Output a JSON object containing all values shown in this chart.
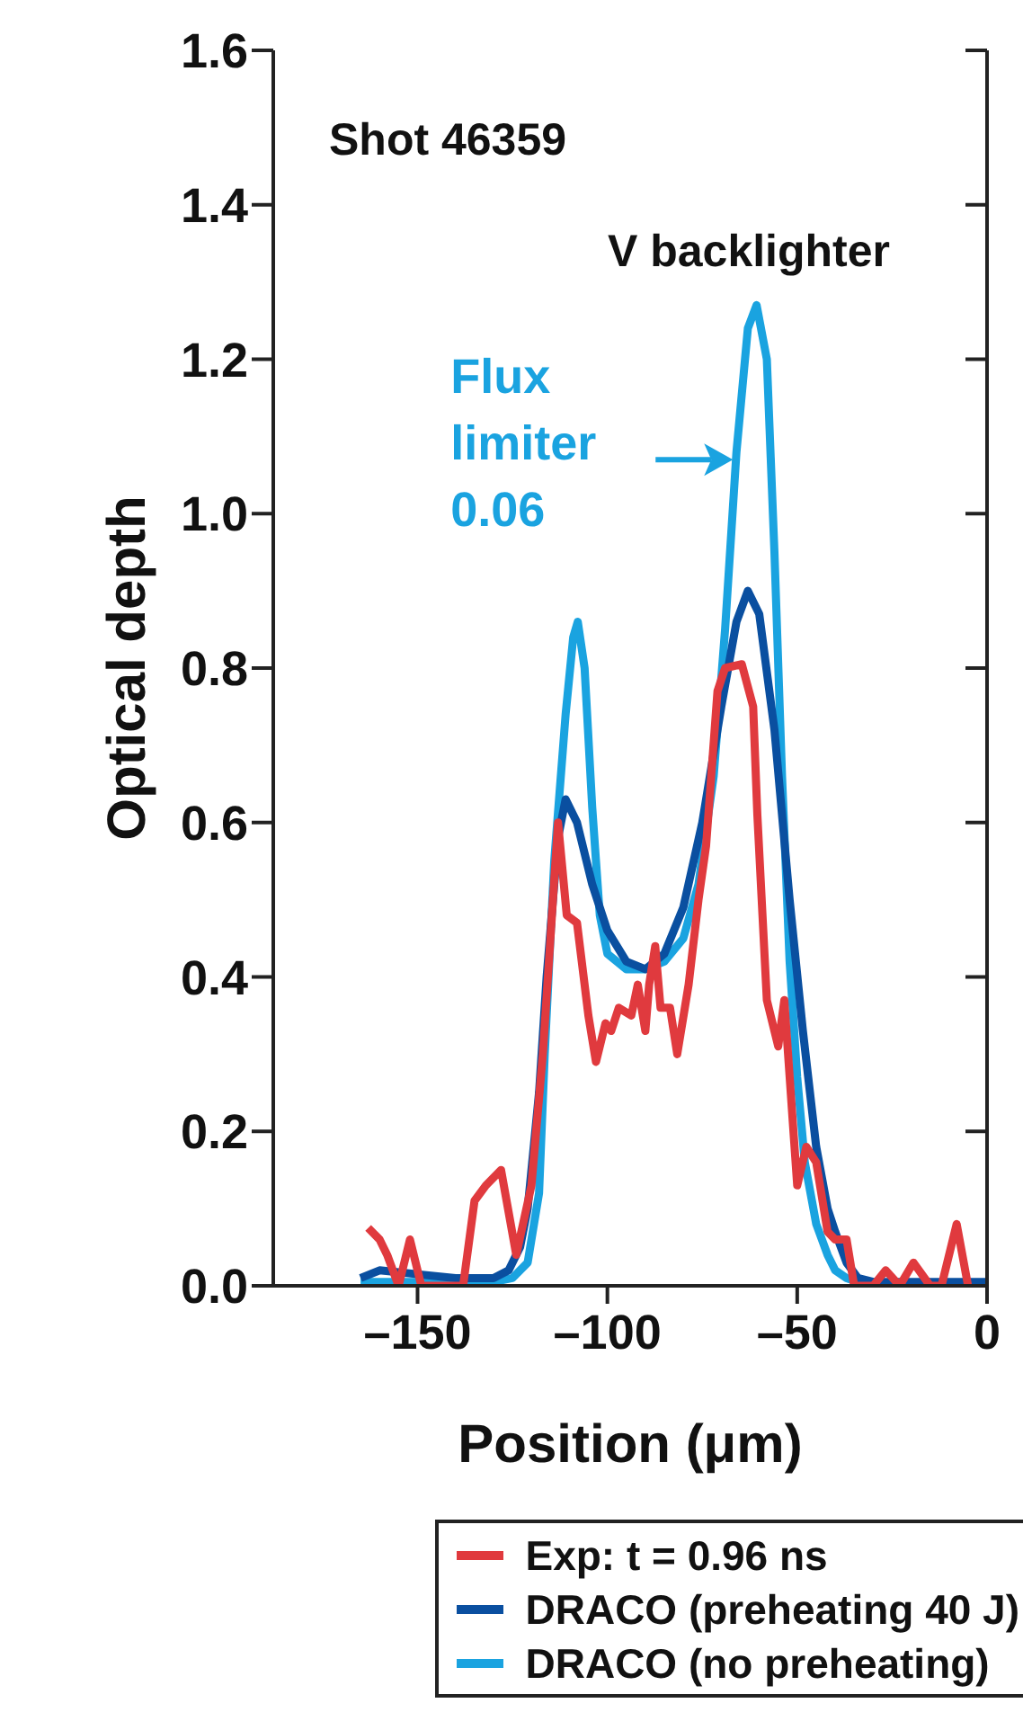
{
  "chart_data": {
    "type": "line",
    "xlabel": "Position (μm)",
    "ylabel": "Optical depth",
    "annotations": [
      "Shot 46359",
      "V backlighter",
      {
        "text": "Flux limiter 0.06",
        "x": -66,
        "y": 1.07
      }
    ],
    "series": [
      {
        "name": "Exp: t = 0.96 ns",
        "color": "#e03a3e",
        "x": [
          -163,
          -160,
          -158,
          -155,
          -152,
          -149,
          -146,
          -142,
          -138,
          -135,
          -132,
          -128,
          -124,
          -120,
          -117,
          -113,
          -110.7,
          -108,
          -105,
          -103,
          -100.5,
          -99,
          -97,
          -93.7,
          -92,
          -90,
          -89,
          -87.4,
          -86,
          -83.5,
          -81.6,
          -78.6,
          -76,
          -74,
          -71,
          -69,
          -64.6,
          -61.6,
          -60.5,
          -58,
          -55,
          -53.4,
          -50,
          -47.6,
          -45,
          -42,
          -40,
          -37,
          -35,
          -30,
          -26.7,
          -23,
          -19.4,
          -15,
          -12,
          -8,
          -5
        ],
        "values": [
          0.075,
          0.06,
          0.04,
          0.0,
          0.06,
          0.0,
          0.0,
          0.0,
          0.0,
          0.11,
          0.13,
          0.15,
          0.04,
          0.13,
          0.3,
          0.6,
          0.48,
          0.47,
          0.35,
          0.29,
          0.34,
          0.33,
          0.36,
          0.35,
          0.39,
          0.33,
          0.39,
          0.44,
          0.36,
          0.36,
          0.3,
          0.39,
          0.5,
          0.57,
          0.77,
          0.8,
          0.805,
          0.75,
          0.61,
          0.37,
          0.31,
          0.37,
          0.13,
          0.18,
          0.16,
          0.07,
          0.06,
          0.06,
          0.0,
          0.0,
          0.02,
          0.0,
          0.03,
          0.0,
          0.0,
          0.08,
          0.0
        ]
      },
      {
        "name": "DRACO (preheating 40 J)",
        "color": "#0a4fa0",
        "x": [
          -165,
          -160,
          -150,
          -140,
          -130,
          -126,
          -123,
          -121,
          -118,
          -116,
          -113,
          -111,
          -108,
          -104,
          -100,
          -95,
          -90,
          -85,
          -80,
          -75,
          -70,
          -66,
          -63,
          -60,
          -56,
          -52,
          -48.5,
          -45,
          -42,
          -40,
          -37,
          -34,
          -30,
          -20,
          -10,
          0
        ],
        "values": [
          0.01,
          0.02,
          0.015,
          0.01,
          0.01,
          0.02,
          0.05,
          0.1,
          0.25,
          0.4,
          0.58,
          0.63,
          0.6,
          0.52,
          0.46,
          0.42,
          0.41,
          0.43,
          0.49,
          0.6,
          0.75,
          0.86,
          0.9,
          0.87,
          0.72,
          0.5,
          0.33,
          0.18,
          0.1,
          0.07,
          0.03,
          0.01,
          0.005,
          0.005,
          0.005,
          0.005
        ]
      },
      {
        "name": "DRACO (no preheating)",
        "color": "#1aa3e0",
        "x": [
          -165,
          -160,
          -150,
          -140,
          -130,
          -125,
          -121,
          -118,
          -116.5,
          -114,
          -111,
          -109,
          -107.8,
          -106,
          -104,
          -102,
          -100,
          -95,
          -90,
          -85,
          -80,
          -76,
          -72,
          -69,
          -66,
          -63,
          -60.7,
          -58,
          -56,
          -54,
          -52,
          -50,
          -48,
          -45,
          -42,
          -40,
          -37,
          -34,
          -30
        ],
        "values": [
          0.005,
          0.005,
          0.005,
          0.005,
          0.005,
          0.01,
          0.03,
          0.12,
          0.3,
          0.55,
          0.74,
          0.84,
          0.86,
          0.8,
          0.62,
          0.48,
          0.43,
          0.41,
          0.41,
          0.42,
          0.45,
          0.52,
          0.66,
          0.85,
          1.08,
          1.24,
          1.27,
          1.2,
          0.95,
          0.66,
          0.42,
          0.27,
          0.16,
          0.08,
          0.04,
          0.02,
          0.01,
          0.005,
          0.0
        ]
      }
    ],
    "xlim": [
      -188,
      0
    ],
    "xticks": [
      {
        "value": -150,
        "label": "–150"
      },
      {
        "value": -100,
        "label": "–100"
      },
      {
        "value": -50,
        "label": "–50"
      },
      0
    ],
    "ylim": [
      0,
      1.6
    ],
    "yticks": [
      {
        "value": 0,
        "label": "0.0"
      },
      {
        "value": 0.2,
        "label": "0.2"
      },
      {
        "value": 0.4,
        "label": "0.4"
      },
      {
        "value": 0.6,
        "label": "0.6"
      },
      {
        "value": 0.8,
        "label": "0.8"
      },
      {
        "value": 1,
        "label": "1.0"
      },
      {
        "value": 1.2,
        "label": "1.2"
      },
      {
        "value": 1.4,
        "label": "1.4"
      },
      {
        "value": 1.6,
        "label": "1.6"
      }
    ],
    "legend": "bottom",
    "grid": false,
    "marker": "none",
    "line_style": "solid"
  }
}
